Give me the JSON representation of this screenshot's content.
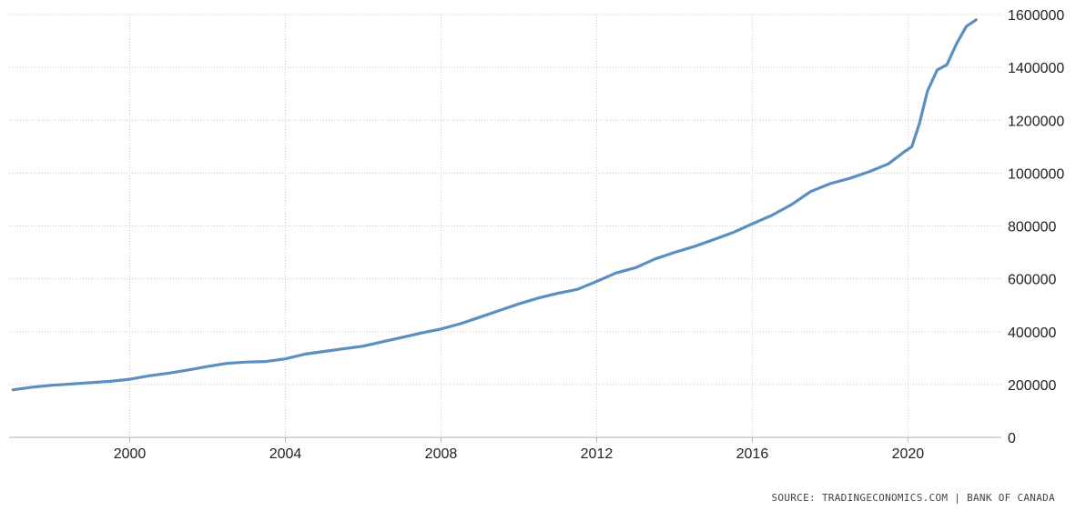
{
  "source": "SOURCE: TRADINGECONOMICS.COM | BANK OF CANADA",
  "colors": {
    "line": "#5b8fc0",
    "grid": "#c8c8c8",
    "text": "#222222"
  },
  "chart_data": {
    "type": "line",
    "title": "",
    "xlabel": "",
    "ylabel": "",
    "x_ticks": [
      "2000",
      "2004",
      "2008",
      "2012",
      "2016",
      "2020"
    ],
    "y_ticks": [
      "0",
      "200000",
      "400000",
      "600000",
      "800000",
      "1000000",
      "1200000",
      "1400000",
      "1600000"
    ],
    "xlim": [
      1996.9,
      2022.4
    ],
    "ylim": [
      0,
      1600000
    ],
    "y_axis_side": "right",
    "grid": true,
    "series": [
      {
        "name": "",
        "x": [
          1997.0,
          1997.5,
          1998.0,
          1998.5,
          1999.0,
          1999.5,
          2000.0,
          2000.5,
          2001.0,
          2001.5,
          2002.0,
          2002.5,
          2003.0,
          2003.5,
          2004.0,
          2004.5,
          2005.0,
          2005.5,
          2006.0,
          2006.5,
          2007.0,
          2007.5,
          2008.0,
          2008.5,
          2009.0,
          2009.5,
          2010.0,
          2010.5,
          2011.0,
          2011.5,
          2012.0,
          2012.5,
          2013.0,
          2013.5,
          2014.0,
          2014.5,
          2015.0,
          2015.5,
          2016.0,
          2016.5,
          2017.0,
          2017.5,
          2018.0,
          2018.5,
          2019.0,
          2019.5,
          2019.9,
          2020.1,
          2020.3,
          2020.5,
          2020.75,
          2021.0,
          2021.25,
          2021.5,
          2021.75
        ],
        "values": [
          180000,
          190000,
          197000,
          202000,
          207000,
          212000,
          220000,
          233000,
          243000,
          255000,
          268000,
          280000,
          285000,
          287000,
          297000,
          315000,
          325000,
          335000,
          345000,
          362000,
          378000,
          395000,
          410000,
          430000,
          455000,
          480000,
          505000,
          527000,
          545000,
          560000,
          590000,
          622000,
          642000,
          675000,
          700000,
          722000,
          748000,
          775000,
          808000,
          840000,
          880000,
          930000,
          960000,
          980000,
          1005000,
          1035000,
          1080000,
          1100000,
          1190000,
          1310000,
          1390000,
          1410000,
          1490000,
          1555000,
          1580000
        ]
      }
    ]
  }
}
